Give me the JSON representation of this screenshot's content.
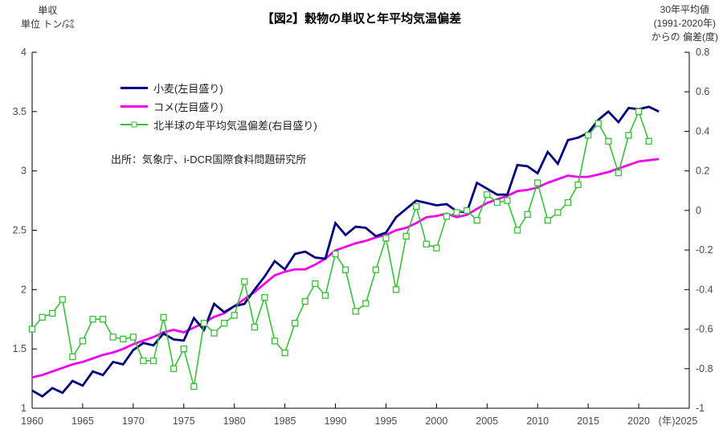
{
  "title": "【図2】穀物の単収と年平均気温偏差",
  "left_axis_header": {
    "line1": "単収",
    "line2": "単位 トン/㌶"
  },
  "right_axis_header": {
    "line1": "30年平均値",
    "line2": "(1991-2020年)",
    "line3": "からの 偏差(度)"
  },
  "source": "出所：気象庁、i-DCR国際食料問題研究所",
  "legend": {
    "items": [
      {
        "label": "小麦(左目盛り)",
        "color": "#000080",
        "marker": "none"
      },
      {
        "label": "コメ(左目盛り)",
        "color": "#EE00EE",
        "marker": "none"
      },
      {
        "label": "北半球の年平均気温偏差(右目盛り)",
        "color": "#38C038",
        "marker": "square"
      }
    ]
  },
  "chart_data": {
    "type": "line",
    "title": "【図2】穀物の単収と年平均気温偏差",
    "grid": false,
    "legend_position": "top-left-inside",
    "xlim": [
      1960,
      2025
    ],
    "x_tick_step": 5,
    "x_unit_label": "(年)",
    "left_ylim": [
      1,
      4
    ],
    "left_tick_step": 0.5,
    "right_ylim": [
      -1,
      0.8
    ],
    "right_tick_step": 0.2,
    "x": [
      1960,
      1961,
      1962,
      1963,
      1964,
      1965,
      1966,
      1967,
      1968,
      1969,
      1970,
      1971,
      1972,
      1973,
      1974,
      1975,
      1976,
      1977,
      1978,
      1979,
      1980,
      1981,
      1982,
      1983,
      1984,
      1985,
      1986,
      1987,
      1988,
      1989,
      1990,
      1991,
      1992,
      1993,
      1994,
      1995,
      1996,
      1997,
      1998,
      1999,
      2000,
      2001,
      2002,
      2003,
      2004,
      2005,
      2006,
      2007,
      2008,
      2009,
      2010,
      2011,
      2012,
      2013,
      2014,
      2015,
      2016,
      2017,
      2018,
      2019,
      2020,
      2021,
      2022
    ],
    "series": [
      {
        "name": "コメ(左目盛り)",
        "axis": "left",
        "color": "#EE00EE",
        "width": 2.8,
        "marker": "none",
        "values": [
          1.26,
          1.28,
          1.31,
          1.34,
          1.37,
          1.39,
          1.42,
          1.45,
          1.47,
          1.5,
          1.54,
          1.57,
          1.6,
          1.64,
          1.66,
          1.64,
          1.68,
          1.72,
          1.77,
          1.8,
          1.86,
          1.92,
          1.98,
          2.05,
          2.12,
          2.15,
          2.17,
          2.17,
          2.21,
          2.26,
          2.33,
          2.36,
          2.39,
          2.41,
          2.44,
          2.46,
          2.5,
          2.52,
          2.56,
          2.61,
          2.62,
          2.64,
          2.61,
          2.63,
          2.68,
          2.73,
          2.76,
          2.79,
          2.83,
          2.84,
          2.86,
          2.9,
          2.93,
          2.96,
          2.95,
          2.95,
          2.97,
          2.99,
          3.02,
          3.05,
          3.08,
          3.09,
          3.1
        ]
      },
      {
        "name": "小麦(左目盛り)",
        "axis": "left",
        "color": "#000080",
        "width": 2.8,
        "marker": "none",
        "values": [
          1.15,
          1.1,
          1.17,
          1.13,
          1.23,
          1.19,
          1.31,
          1.28,
          1.39,
          1.37,
          1.49,
          1.55,
          1.53,
          1.63,
          1.58,
          1.57,
          1.76,
          1.66,
          1.88,
          1.81,
          1.86,
          1.88,
          2.0,
          2.11,
          2.24,
          2.17,
          2.3,
          2.32,
          2.27,
          2.26,
          2.56,
          2.46,
          2.53,
          2.52,
          2.45,
          2.48,
          2.61,
          2.68,
          2.75,
          2.73,
          2.71,
          2.72,
          2.66,
          2.65,
          2.9,
          2.85,
          2.8,
          2.8,
          3.05,
          3.04,
          2.98,
          3.16,
          3.06,
          3.26,
          3.28,
          3.32,
          3.43,
          3.5,
          3.41,
          3.53,
          3.52,
          3.54,
          3.5
        ]
      },
      {
        "name": "北半球の年平均気温偏差(右目盛り)",
        "axis": "right",
        "color": "#38C038",
        "width": 1.6,
        "marker": "square",
        "values": [
          -0.6,
          -0.54,
          -0.52,
          -0.45,
          -0.74,
          -0.66,
          -0.55,
          -0.55,
          -0.64,
          -0.65,
          -0.64,
          -0.76,
          -0.76,
          -0.54,
          -0.8,
          -0.7,
          -0.89,
          -0.57,
          -0.62,
          -0.57,
          -0.53,
          -0.36,
          -0.59,
          -0.44,
          -0.66,
          -0.72,
          -0.57,
          -0.46,
          -0.37,
          -0.43,
          -0.22,
          -0.3,
          -0.51,
          -0.47,
          -0.3,
          -0.14,
          -0.4,
          -0.13,
          0.02,
          -0.17,
          -0.19,
          -0.03,
          -0.01,
          0.0,
          -0.05,
          0.08,
          0.04,
          0.05,
          -0.1,
          -0.02,
          0.14,
          -0.05,
          -0.01,
          0.04,
          0.13,
          0.38,
          0.44,
          0.35,
          0.19,
          0.38,
          0.5,
          0.35,
          null
        ]
      }
    ]
  }
}
